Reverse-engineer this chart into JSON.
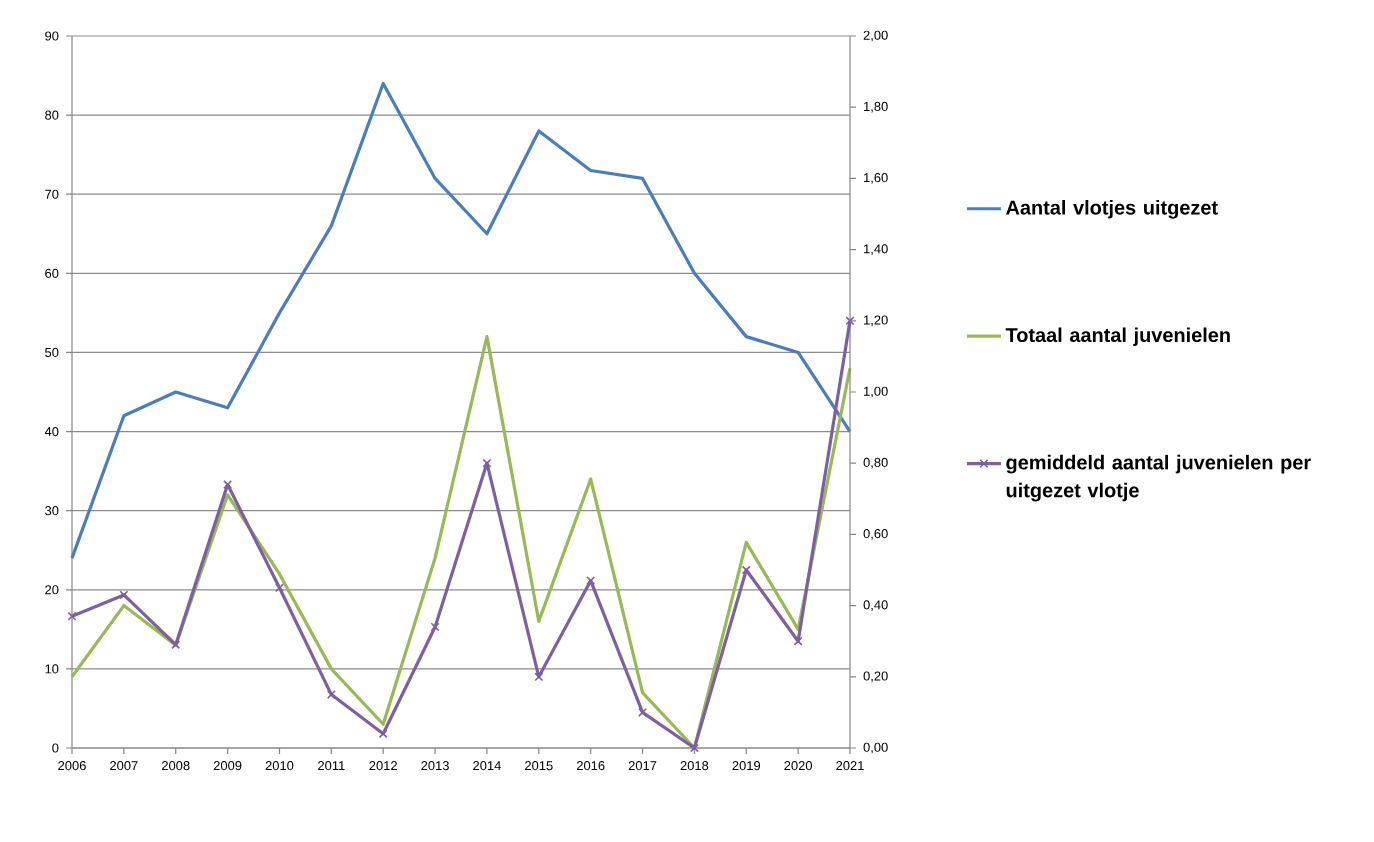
{
  "chart_data": {
    "type": "line",
    "categories": [
      "2006",
      "2007",
      "2008",
      "2009",
      "2010",
      "2011",
      "2012",
      "2013",
      "2014",
      "2015",
      "2016",
      "2017",
      "2018",
      "2019",
      "2020",
      "2021"
    ],
    "series": [
      {
        "name": "Aantal vlotjes uitgezet",
        "color": "#4a7ebb",
        "values": [
          24,
          42,
          45,
          43,
          55,
          66,
          84,
          72,
          65,
          78,
          73,
          72,
          60,
          52,
          50,
          40
        ]
      },
      {
        "name": "Totaal aantal juvenielen",
        "color": "#98b954",
        "values": [
          9,
          18,
          13,
          32,
          22,
          10,
          3,
          24,
          52,
          16,
          34,
          7,
          0,
          26,
          15,
          48
        ]
      },
      {
        "name": "gemiddeld aantal juvenielen per uitgezet vlotje",
        "color": "#7d60a0",
        "axis": "y2",
        "marker": "cross",
        "values": [
          0.37,
          0.43,
          0.29,
          0.74,
          0.45,
          0.15,
          0.04,
          0.34,
          0.8,
          0.2,
          0.47,
          0.1,
          0,
          0.5,
          0.3,
          1.2
        ]
      }
    ],
    "ylim": [
      0,
      90
    ],
    "yticks": [
      0,
      10,
      20,
      30,
      40,
      50,
      60,
      70,
      80,
      90
    ],
    "y2lim": [
      0,
      2
    ],
    "y2ticks": [
      {
        "value": 0,
        "label": "0,00"
      },
      {
        "value": 0.2,
        "label": "0,20"
      },
      {
        "value": 0.4,
        "label": "0,40"
      },
      {
        "value": 0.6,
        "label": "0,60"
      },
      {
        "value": 0.8,
        "label": "0,80"
      },
      {
        "value": 1,
        "label": "1,00"
      },
      {
        "value": 1.2,
        "label": "1,20"
      },
      {
        "value": 1.4,
        "label": "1,40"
      },
      {
        "value": 1.6,
        "label": "1,60"
      },
      {
        "value": 1.8,
        "label": "1,80"
      },
      {
        "value": 2,
        "label": "2,00"
      }
    ],
    "grid": "y",
    "legend": "right",
    "marker": "none"
  }
}
